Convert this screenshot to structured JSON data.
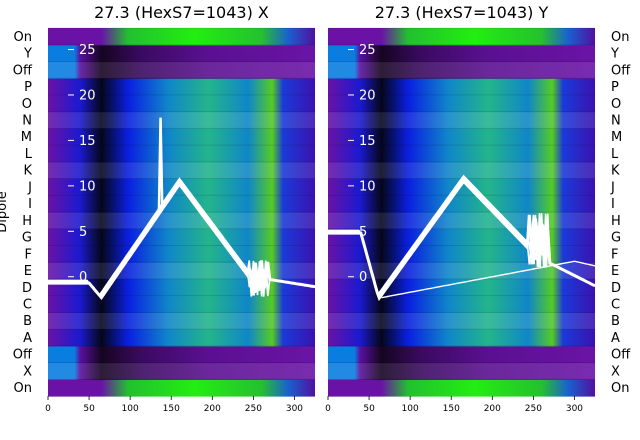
{
  "chart_data": [
    {
      "type": "heatmap",
      "title": "27.3 (HexS7=1043) X",
      "ylabel": "Dipole",
      "row_labels": [
        "On",
        "X",
        "Off",
        "A",
        "B",
        "C",
        "D",
        "E",
        "F",
        "G",
        "H",
        "I",
        "J",
        "K",
        "L",
        "M",
        "N",
        "O",
        "P",
        "Off",
        "Y",
        "On"
      ],
      "x_ticks": [
        0,
        50,
        100,
        150,
        200,
        250,
        300
      ],
      "xlim": [
        0,
        325
      ],
      "overlay_ticks": [
        0,
        5,
        10,
        15,
        20,
        25
      ],
      "overlay_ylim": [
        -3,
        27
      ]
    },
    {
      "type": "heatmap",
      "title": "27.3 (HexS7=1043) Y",
      "ylabel": "",
      "row_labels": [
        "On",
        "X",
        "Off",
        "A",
        "B",
        "C",
        "D",
        "E",
        "F",
        "G",
        "H",
        "I",
        "J",
        "K",
        "L",
        "M",
        "N",
        "O",
        "P",
        "Off",
        "Y",
        "On"
      ],
      "x_ticks": [
        0,
        50,
        100,
        150,
        200,
        250,
        300
      ],
      "xlim": [
        0,
        325
      ],
      "overlay_ticks": [
        0,
        5,
        10,
        15,
        20,
        25
      ],
      "overlay_ylim": [
        -3,
        27
      ]
    }
  ]
}
